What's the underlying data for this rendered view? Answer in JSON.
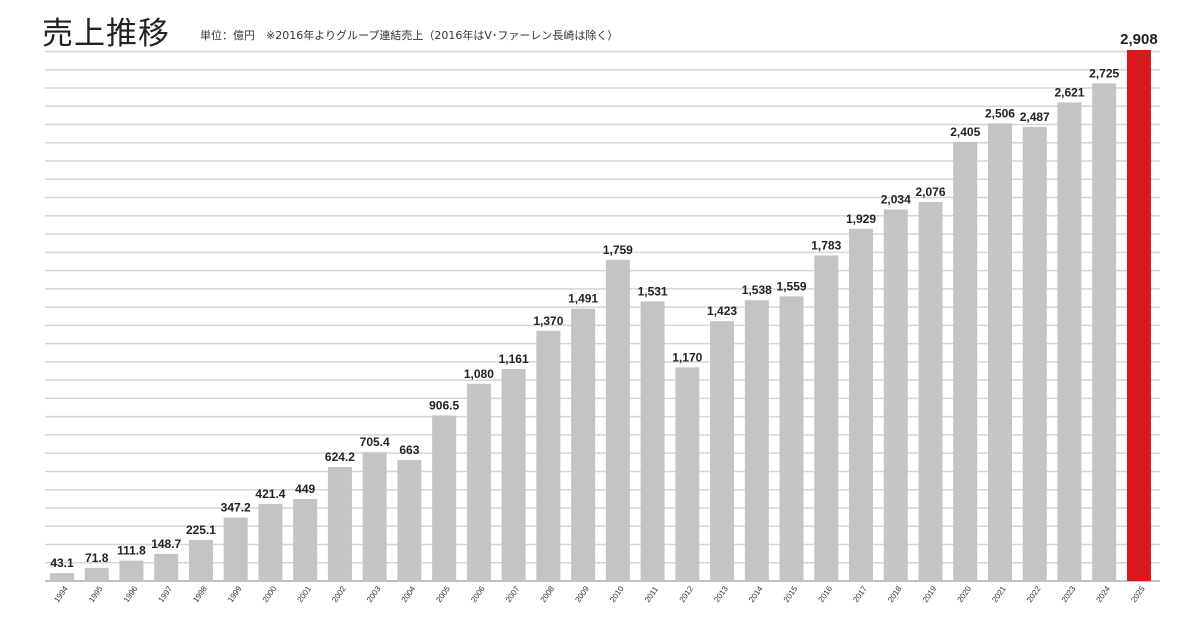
{
  "chart_data": {
    "type": "bar",
    "title": "売上推移",
    "subtitle": "単位：億円　※2016年よりグループ連結売上（2016年はV･ファーレン長崎は除く）",
    "xlabel": "",
    "ylabel": "",
    "ylim": [
      0,
      2908
    ],
    "grid": true,
    "grid_step": 100,
    "categories": [
      "1994",
      "1995",
      "1996",
      "1997",
      "1998",
      "1999",
      "2000",
      "2001",
      "2002",
      "2003",
      "2004",
      "2005",
      "2006",
      "2007",
      "2008",
      "2009",
      "2010",
      "2011",
      "2012",
      "2013",
      "2014",
      "2015",
      "2016",
      "2017",
      "2018",
      "2019",
      "2020",
      "2021",
      "2022",
      "2023",
      "2024",
      "2025"
    ],
    "values": [
      43.1,
      71.8,
      111.8,
      148.7,
      225.1,
      347.2,
      421.4,
      449,
      624.2,
      705.4,
      663,
      906.5,
      1080,
      1161,
      1370,
      1491,
      1759,
      1531,
      1170,
      1423,
      1538,
      1559,
      1783,
      1929,
      2034,
      2076,
      2405,
      2506,
      2487,
      2621,
      2725,
      2908
    ],
    "value_labels": [
      "43.1",
      "71.8",
      "111.8",
      "148.7",
      "225.1",
      "347.2",
      "421.4",
      "449",
      "624.2",
      "705.4",
      "663",
      "906.5",
      "1,080",
      "1,161",
      "1,370",
      "1,491",
      "1,759",
      "1,531",
      "1,170",
      "1,423",
      "1,538",
      "1,559",
      "1,783",
      "1,929",
      "2,034",
      "2,076",
      "2,405",
      "2,506",
      "2,487",
      "2,621",
      "2,725",
      "2,908"
    ],
    "highlight_index": 31,
    "colors": {
      "bar": "#c3c4c6",
      "highlight": "#d7191c",
      "grid": "#d4d6d8"
    }
  }
}
